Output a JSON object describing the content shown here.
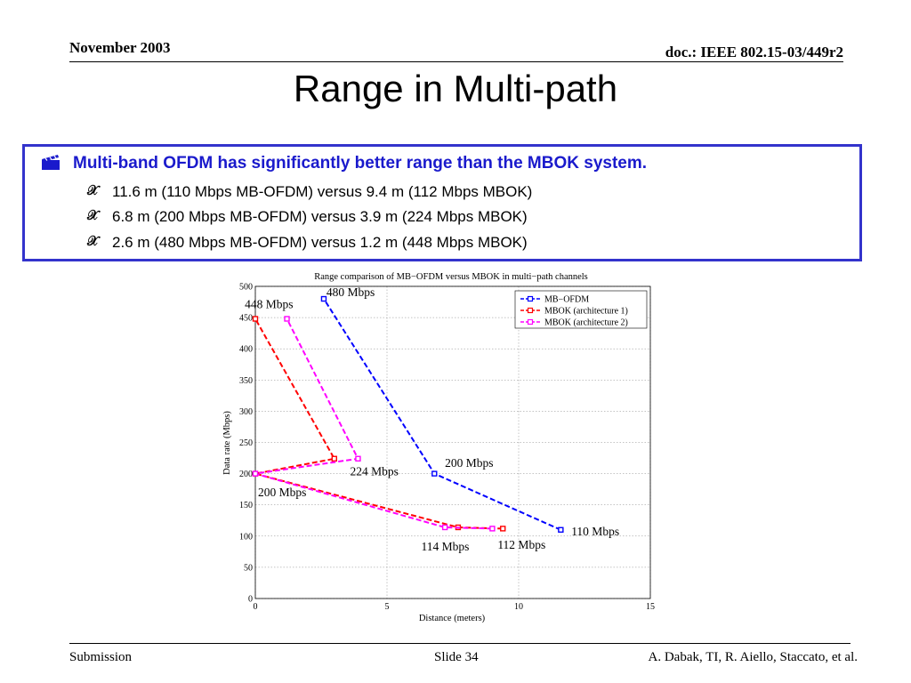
{
  "header": {
    "date": "November 2003",
    "doc": "doc.: IEEE 802.15-03/449r2"
  },
  "slide": {
    "title": "Range in Multi-path",
    "bullet_main": "Multi-band OFDM has significantly better range than the MBOK system.",
    "bullets": [
      "11.6 m (110 Mbps MB-OFDM) versus 9.4 m (112 Mbps MBOK)",
      "6.8 m (200 Mbps MB-OFDM) versus 3.9 m (224 Mbps MBOK)",
      " 2.6 m (480 Mbps MB-OFDM) versus 1.2 m (448 Mbps MBOK)"
    ],
    "bullet_main_icon": "clapperboard-icon",
    "bullet_sub_icon": "sub-bullet-icon"
  },
  "chart_data": {
    "type": "line",
    "title": "Range comparison of MB−OFDM versus MBOK in multi−path channels",
    "xlabel": "Distance (meters)",
    "ylabel": "Data rate (Mbps)",
    "xlim": [
      0,
      15
    ],
    "ylim": [
      0,
      500
    ],
    "xticks": [
      0,
      5,
      10,
      15
    ],
    "yticks": [
      0,
      50,
      100,
      150,
      200,
      250,
      300,
      350,
      400,
      450,
      500
    ],
    "grid": true,
    "legend_position": "top-right",
    "series": [
      {
        "name": "MB−OFDM",
        "color": "#0000ff",
        "points": [
          [
            11.6,
            110
          ],
          [
            6.8,
            200
          ],
          [
            2.6,
            480
          ]
        ]
      },
      {
        "name": "MBOK (architecture 1)",
        "color": "#ff0000",
        "points": [
          [
            9.4,
            112
          ],
          [
            7.7,
            114
          ],
          [
            0,
            200
          ],
          [
            3.0,
            224
          ],
          [
            0,
            448
          ]
        ]
      },
      {
        "name": "MBOK (architecture 2)",
        "color": "#ff00ff",
        "points": [
          [
            9.0,
            112
          ],
          [
            7.2,
            114
          ],
          [
            0,
            200
          ],
          [
            3.9,
            224
          ],
          [
            1.2,
            448
          ]
        ]
      }
    ],
    "annotations": [
      {
        "text": "480 Mbps",
        "x": 2.7,
        "y": 484
      },
      {
        "text": "448 Mbps",
        "x": -0.4,
        "y": 465
      },
      {
        "text": "200 Mbps",
        "x": 7.2,
        "y": 211
      },
      {
        "text": "224 Mbps",
        "x": 3.6,
        "y": 197
      },
      {
        "text": "200 Mbps",
        "x": 0.1,
        "y": 164
      },
      {
        "text": "110 Mbps",
        "x": 12.0,
        "y": 101
      },
      {
        "text": "114 Mbps",
        "x": 6.3,
        "y": 77
      },
      {
        "text": "112 Mbps",
        "x": 9.2,
        "y": 80
      }
    ]
  },
  "footer": {
    "left": "Submission",
    "center": "Slide 34",
    "right": "A. Dabak, TI, R. Aiello, Staccato, et al."
  }
}
